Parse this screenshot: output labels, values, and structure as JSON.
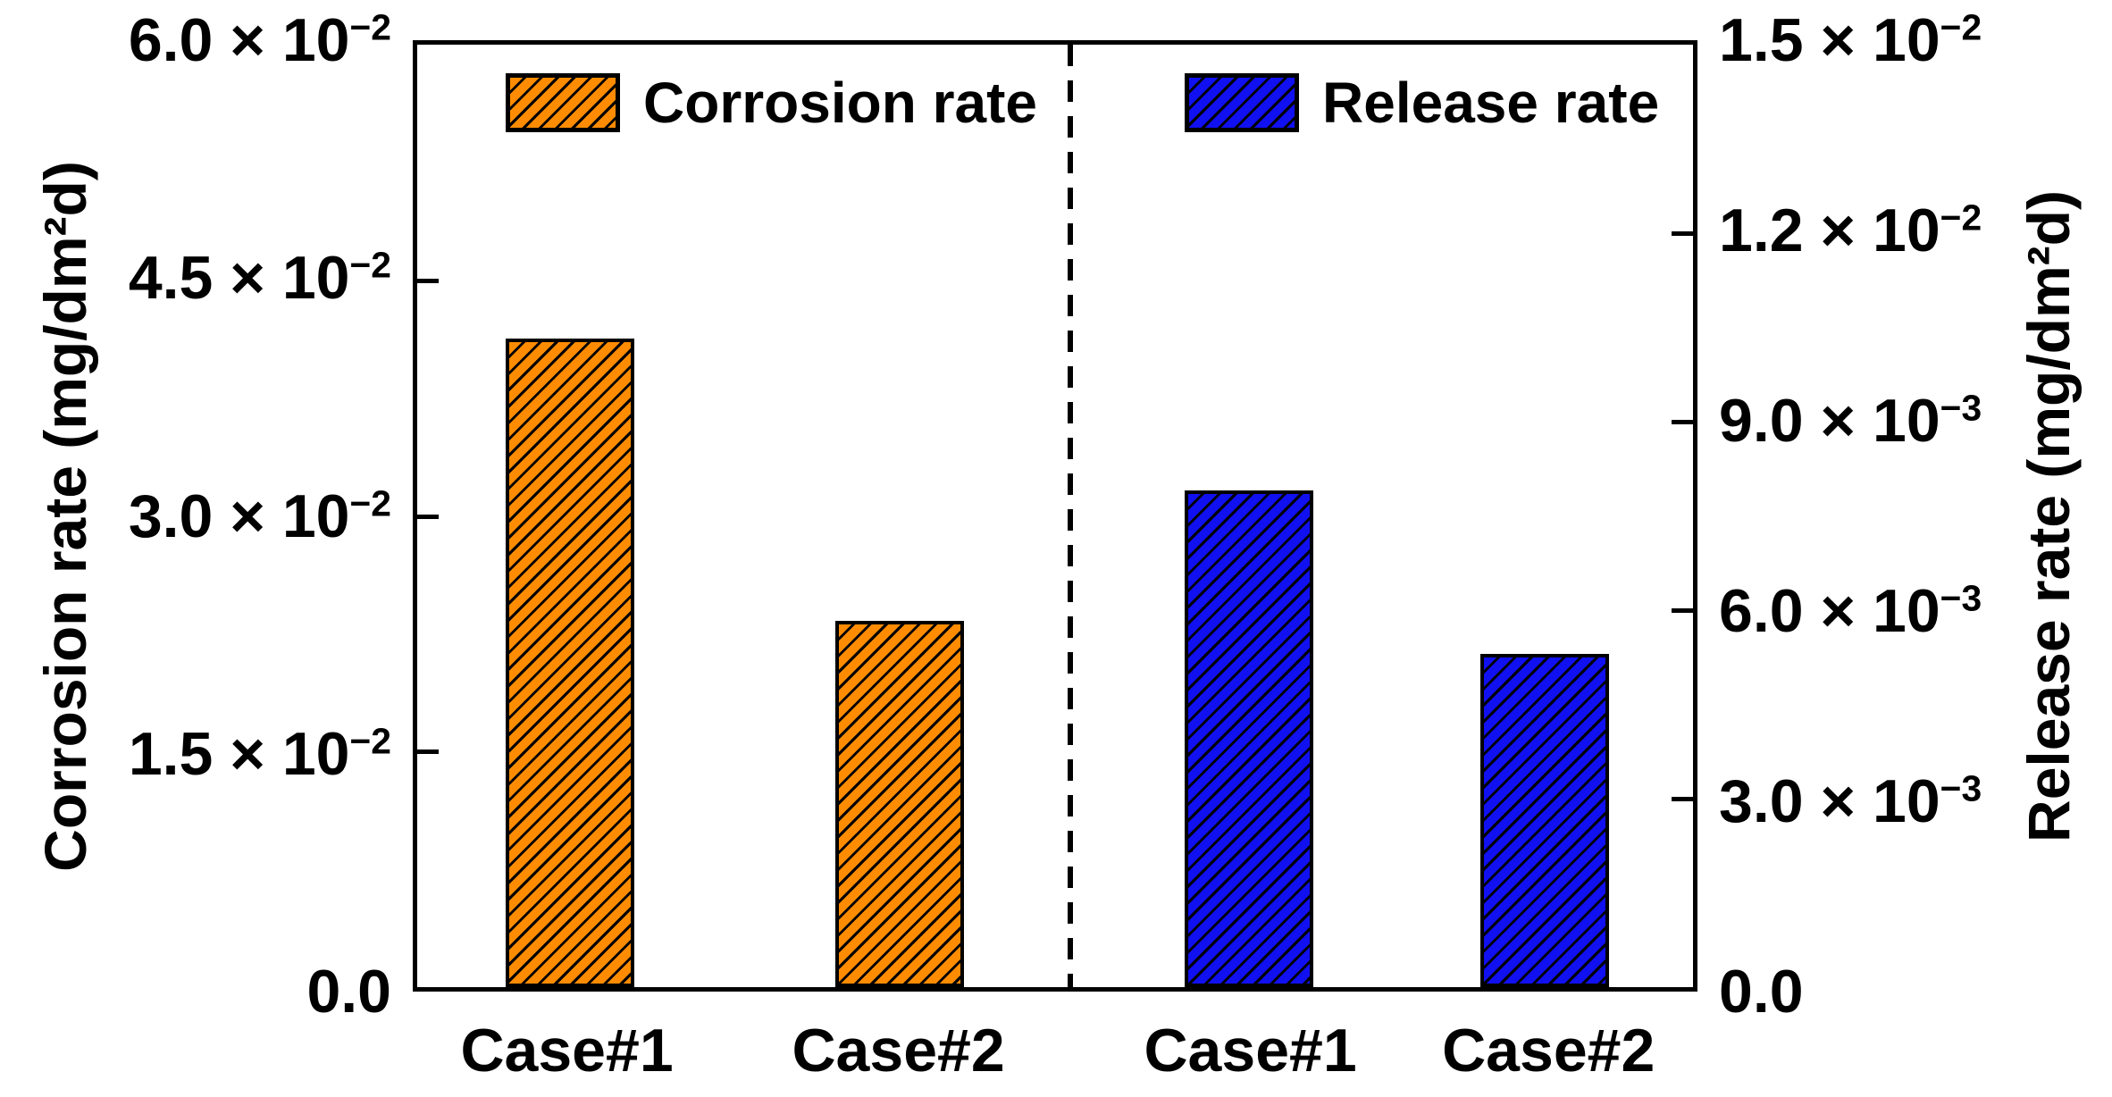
{
  "chart_data": {
    "type": "bar",
    "title": "",
    "times": "×",
    "base": "10",
    "categories": [
      "Case#1",
      "Case#2"
    ],
    "series": [
      {
        "name": "Corrosion rate",
        "axis": "left",
        "color": "#FF8C00",
        "hatch": "///",
        "values": [
          0.0413,
          0.0233
        ]
      },
      {
        "name": "Release rate",
        "axis": "right",
        "color": "#1010F0",
        "hatch": "///",
        "values": [
          0.0079,
          0.0053
        ]
      }
    ],
    "axes": {
      "left": {
        "label": "Corrosion rate (mg/dm²d)",
        "min": 0,
        "max": 0.06,
        "ticks": [
          {
            "value": 0.06,
            "mantissa": "6.0",
            "exponent": "−2"
          },
          {
            "value": 0.045,
            "mantissa": "4.5",
            "exponent": "−2"
          },
          {
            "value": 0.03,
            "mantissa": "3.0",
            "exponent": "−2"
          },
          {
            "value": 0.015,
            "mantissa": "1.5",
            "exponent": "−2"
          },
          {
            "value": 0,
            "mantissa": "0.0",
            "exponent": null
          }
        ]
      },
      "right": {
        "label": "Release rate (mg/dm²d)",
        "min": 0,
        "max": 0.015,
        "ticks": [
          {
            "value": 0.015,
            "mantissa": "1.5",
            "exponent": "−2"
          },
          {
            "value": 0.012,
            "mantissa": "1.2",
            "exponent": "−2"
          },
          {
            "value": 0.009,
            "mantissa": "9.0",
            "exponent": "−3"
          },
          {
            "value": 0.006,
            "mantissa": "6.0",
            "exponent": "−3"
          },
          {
            "value": 0.003,
            "mantissa": "3.0",
            "exponent": "−3"
          },
          {
            "value": 0,
            "mantissa": "0.0",
            "exponent": null
          }
        ]
      }
    },
    "x_tick_labels": [
      "Case#1",
      "Case#2",
      "Case#1",
      "Case#2"
    ],
    "legend": {
      "position": "top-inside",
      "entries": [
        {
          "label": "Corrosion rate"
        },
        {
          "label": "Release rate"
        }
      ]
    },
    "separator": {
      "style": "dashed",
      "orientation": "vertical",
      "position_frac": 0.512
    },
    "layout": {
      "grid": false,
      "bar_centers_frac": [
        0.12,
        0.378,
        0.652,
        0.884
      ],
      "bar_width_frac": 0.101
    },
    "hatch_color": "#000000"
  }
}
